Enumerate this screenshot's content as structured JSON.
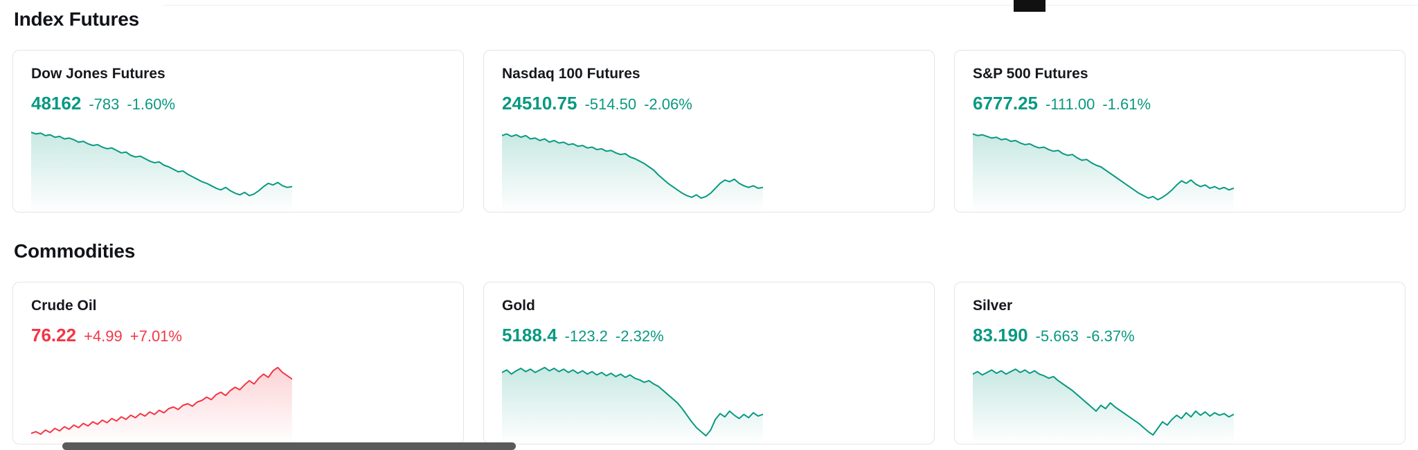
{
  "colors": {
    "up_green": "#089981",
    "down_red": "#f23645",
    "card_border": "#e1e4ea",
    "heading_text": "#111318",
    "bottom_bar": "#5a5a5a",
    "top_artifact": "#111111"
  },
  "sections": [
    {
      "title": "Index Futures",
      "cards": [
        {
          "name": "Dow Jones Futures",
          "price": "48162",
          "change": "-783",
          "change_pct": "-1.60%",
          "color": "#089981"
        },
        {
          "name": "Nasdaq 100 Futures",
          "price": "24510.75",
          "change": "-514.50",
          "change_pct": "-2.06%",
          "color": "#089981"
        },
        {
          "name": "S&P 500 Futures",
          "price": "6777.25",
          "change": "-111.00",
          "change_pct": "-1.61%",
          "color": "#089981"
        }
      ]
    },
    {
      "title": "Commodities",
      "cards": [
        {
          "name": "Crude Oil",
          "price": "76.22",
          "change": "+4.99",
          "change_pct": "+7.01%",
          "color": "#f23645"
        },
        {
          "name": "Gold",
          "price": "5188.4",
          "change": "-123.2",
          "change_pct": "-2.32%",
          "color": "#089981"
        },
        {
          "name": "Silver",
          "price": "83.190",
          "change": "-5.663",
          "change_pct": "-6.37%",
          "color": "#089981"
        }
      ]
    }
  ],
  "chart_data": [
    {
      "type": "area",
      "title": "Dow Jones Futures sparkline",
      "color": "#089981",
      "x_axis": "hidden",
      "y_axis": "hidden",
      "unit": "relative 0-100",
      "values": [
        92,
        90,
        91,
        88,
        89,
        86,
        87,
        84,
        85,
        83,
        80,
        81,
        78,
        76,
        77,
        74,
        72,
        73,
        70,
        67,
        68,
        64,
        62,
        63,
        60,
        57,
        55,
        56,
        52,
        50,
        47,
        44,
        45,
        41,
        38,
        35,
        32,
        30,
        27,
        24,
        22,
        25,
        21,
        18,
        16,
        19,
        15,
        17,
        21,
        26,
        30,
        28,
        31,
        27,
        25,
        26
      ]
    },
    {
      "type": "area",
      "title": "Nasdaq 100 Futures sparkline",
      "color": "#089981",
      "x_axis": "hidden",
      "y_axis": "hidden",
      "unit": "relative 0-100",
      "values": [
        88,
        90,
        87,
        89,
        86,
        88,
        84,
        85,
        82,
        84,
        80,
        82,
        79,
        80,
        77,
        78,
        75,
        76,
        73,
        74,
        71,
        72,
        69,
        70,
        67,
        65,
        66,
        62,
        60,
        57,
        54,
        50,
        46,
        40,
        35,
        30,
        26,
        22,
        18,
        15,
        13,
        16,
        12,
        14,
        18,
        24,
        30,
        34,
        32,
        35,
        30,
        27,
        25,
        27,
        24,
        25
      ]
    },
    {
      "type": "area",
      "title": "S&P 500 Futures sparkline",
      "color": "#089981",
      "x_axis": "hidden",
      "y_axis": "hidden",
      "unit": "relative 0-100",
      "values": [
        90,
        88,
        89,
        87,
        85,
        86,
        83,
        84,
        81,
        82,
        79,
        77,
        78,
        75,
        73,
        74,
        71,
        69,
        70,
        66,
        64,
        65,
        61,
        58,
        59,
        55,
        52,
        50,
        46,
        42,
        38,
        34,
        30,
        26,
        22,
        18,
        15,
        12,
        14,
        10,
        13,
        17,
        22,
        28,
        33,
        30,
        34,
        29,
        26,
        28,
        24,
        26,
        23,
        25,
        22,
        24
      ]
    },
    {
      "type": "area",
      "title": "Crude Oil sparkline",
      "color": "#f23645",
      "x_axis": "hidden",
      "y_axis": "hidden",
      "unit": "relative 0-100",
      "values": [
        8,
        10,
        7,
        12,
        9,
        14,
        11,
        16,
        13,
        18,
        15,
        20,
        17,
        22,
        19,
        24,
        21,
        26,
        23,
        28,
        25,
        30,
        27,
        32,
        29,
        34,
        31,
        36,
        33,
        38,
        40,
        37,
        42,
        44,
        41,
        46,
        48,
        52,
        49,
        55,
        58,
        54,
        60,
        64,
        61,
        67,
        72,
        68,
        75,
        80,
        76,
        84,
        88,
        82,
        78,
        74
      ]
    },
    {
      "type": "area",
      "title": "Gold sparkline",
      "color": "#089981",
      "x_axis": "hidden",
      "y_axis": "hidden",
      "unit": "relative 0-100",
      "values": [
        82,
        85,
        80,
        84,
        87,
        83,
        86,
        82,
        85,
        88,
        84,
        87,
        83,
        86,
        82,
        85,
        81,
        84,
        80,
        83,
        79,
        82,
        78,
        81,
        77,
        80,
        76,
        79,
        75,
        73,
        70,
        72,
        68,
        65,
        60,
        55,
        50,
        45,
        38,
        30,
        22,
        15,
        10,
        5,
        12,
        25,
        32,
        28,
        35,
        30,
        26,
        31,
        27,
        33,
        29,
        31
      ]
    },
    {
      "type": "area",
      "title": "Silver sparkline",
      "color": "#089981",
      "x_axis": "hidden",
      "y_axis": "hidden",
      "unit": "relative 0-100",
      "values": [
        80,
        83,
        79,
        82,
        85,
        81,
        84,
        80,
        83,
        86,
        82,
        85,
        81,
        84,
        80,
        78,
        75,
        77,
        72,
        68,
        64,
        60,
        55,
        50,
        45,
        40,
        35,
        42,
        38,
        45,
        40,
        36,
        32,
        28,
        24,
        20,
        15,
        10,
        6,
        14,
        22,
        18,
        25,
        30,
        26,
        33,
        28,
        35,
        30,
        34,
        29,
        33,
        30,
        32,
        28,
        31
      ]
    }
  ]
}
